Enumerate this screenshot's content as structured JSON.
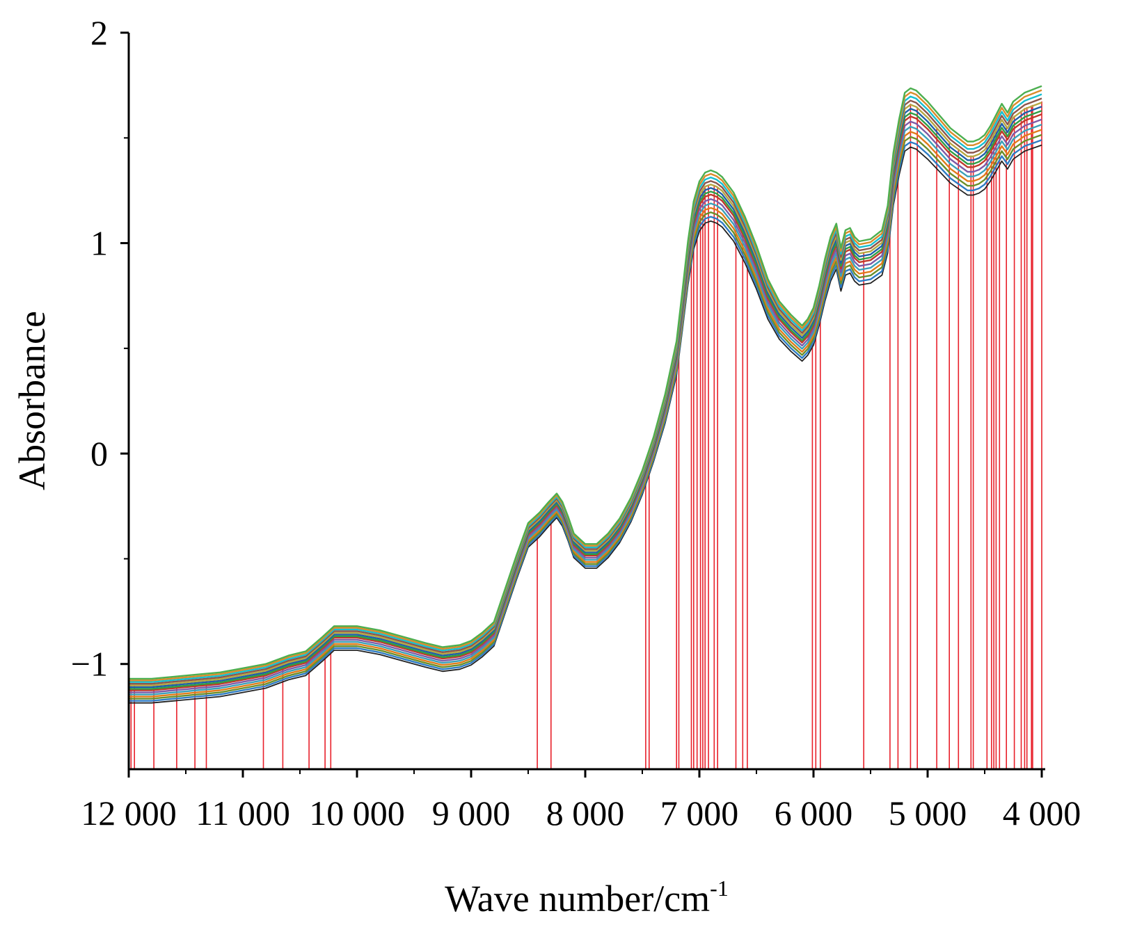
{
  "chart_data": {
    "type": "line",
    "title": "",
    "xlabel": "Wave number/cm",
    "xlabel_superscript": "-1",
    "ylabel": "Absorbance",
    "xlim": [
      12000,
      4000
    ],
    "ylim": [
      -1.5,
      2
    ],
    "x_reversed": true,
    "grid": false,
    "legend": "none",
    "x_ticks": [
      {
        "value": 12000,
        "label": "12 000"
      },
      {
        "value": 11000,
        "label": "11 000"
      },
      {
        "value": 10000,
        "label": "10 000"
      },
      {
        "value": 9000,
        "label": "9 000"
      },
      {
        "value": 8000,
        "label": "8 000"
      },
      {
        "value": 7000,
        "label": "7 000"
      },
      {
        "value": 6000,
        "label": "6 000"
      },
      {
        "value": 5000,
        "label": "5 000"
      },
      {
        "value": 4000,
        "label": "4 000"
      }
    ],
    "y_ticks": [
      {
        "value": -1,
        "label": "−1"
      },
      {
        "value": 0,
        "label": "0"
      },
      {
        "value": 1,
        "label": "1"
      },
      {
        "value": 2,
        "label": "2"
      }
    ],
    "mean_spectrum": {
      "x": [
        12000,
        11800,
        11600,
        11400,
        11200,
        11000,
        10800,
        10600,
        10450,
        10300,
        10200,
        10000,
        9800,
        9600,
        9400,
        9250,
        9100,
        9000,
        8900,
        8800,
        8700,
        8600,
        8500,
        8400,
        8320,
        8250,
        8200,
        8150,
        8100,
        8000,
        7900,
        7800,
        7700,
        7600,
        7500,
        7400,
        7300,
        7200,
        7150,
        7100,
        7050,
        7000,
        6950,
        6900,
        6850,
        6800,
        6700,
        6600,
        6500,
        6400,
        6300,
        6200,
        6100,
        6050,
        6000,
        5950,
        5900,
        5850,
        5800,
        5760,
        5720,
        5680,
        5640,
        5600,
        5500,
        5400,
        5350,
        5300,
        5250,
        5200,
        5150,
        5100,
        5000,
        4900,
        4800,
        4700,
        4650,
        4600,
        4550,
        4500,
        4450,
        4400,
        4350,
        4300,
        4250,
        4200,
        4150,
        4100,
        4050,
        4000
      ],
      "y": [
        -1.13,
        -1.13,
        -1.12,
        -1.11,
        -1.1,
        -1.08,
        -1.06,
        -1.02,
        -1,
        -0.93,
        -0.88,
        -0.88,
        -0.9,
        -0.93,
        -0.96,
        -0.98,
        -0.97,
        -0.95,
        -0.91,
        -0.86,
        -0.7,
        -0.54,
        -0.39,
        -0.34,
        -0.29,
        -0.25,
        -0.29,
        -0.36,
        -0.44,
        -0.49,
        -0.49,
        -0.44,
        -0.37,
        -0.27,
        -0.14,
        0.02,
        0.21,
        0.45,
        0.67,
        0.9,
        1.08,
        1.17,
        1.21,
        1.22,
        1.21,
        1.19,
        1.12,
        1.01,
        0.88,
        0.73,
        0.63,
        0.57,
        0.52,
        0.55,
        0.6,
        0.7,
        0.82,
        0.92,
        0.98,
        0.87,
        0.95,
        0.96,
        0.92,
        0.9,
        0.91,
        0.95,
        1.06,
        1.3,
        1.45,
        1.57,
        1.59,
        1.58,
        1.53,
        1.47,
        1.41,
        1.37,
        1.35,
        1.35,
        1.36,
        1.38,
        1.42,
        1.47,
        1.52,
        1.48,
        1.53,
        1.55,
        1.57,
        1.58,
        1.59,
        1.6
      ]
    },
    "series_count_shown": 14,
    "series_offsets": [
      -0.055,
      -0.045,
      -0.035,
      -0.025,
      -0.015,
      -0.005,
      0.005,
      0.012,
      0.02,
      0.028,
      0.036,
      0.044,
      0.052,
      0.06
    ],
    "series_colors": [
      "#222222",
      "#2e7bc4",
      "#6a8f2a",
      "#e07b1a",
      "#3aa0b8",
      "#7d5aa6",
      "#c0392b",
      "#2f9e44",
      "#1f5fa8",
      "#b5a642",
      "#8c564b",
      "#17becf",
      "#d98c2b",
      "#4caf50"
    ],
    "selected_wavenumbers": [
      11980,
      11950,
      11780,
      11580,
      11420,
      11320,
      10820,
      10650,
      10420,
      10280,
      10230,
      8420,
      8300,
      7470,
      7440,
      7200,
      7180,
      7070,
      7050,
      7020,
      6990,
      6970,
      6950,
      6920,
      6870,
      6840,
      6680,
      6620,
      6580,
      6010,
      5980,
      5940,
      5560,
      5330,
      5260,
      5150,
      5090,
      4920,
      4810,
      4730,
      4620,
      4600,
      4480,
      4440,
      4420,
      4400,
      4370,
      4310,
      4240,
      4180,
      4150,
      4130,
      4090,
      4080,
      4000
    ],
    "selected_color": "#e8202a"
  }
}
